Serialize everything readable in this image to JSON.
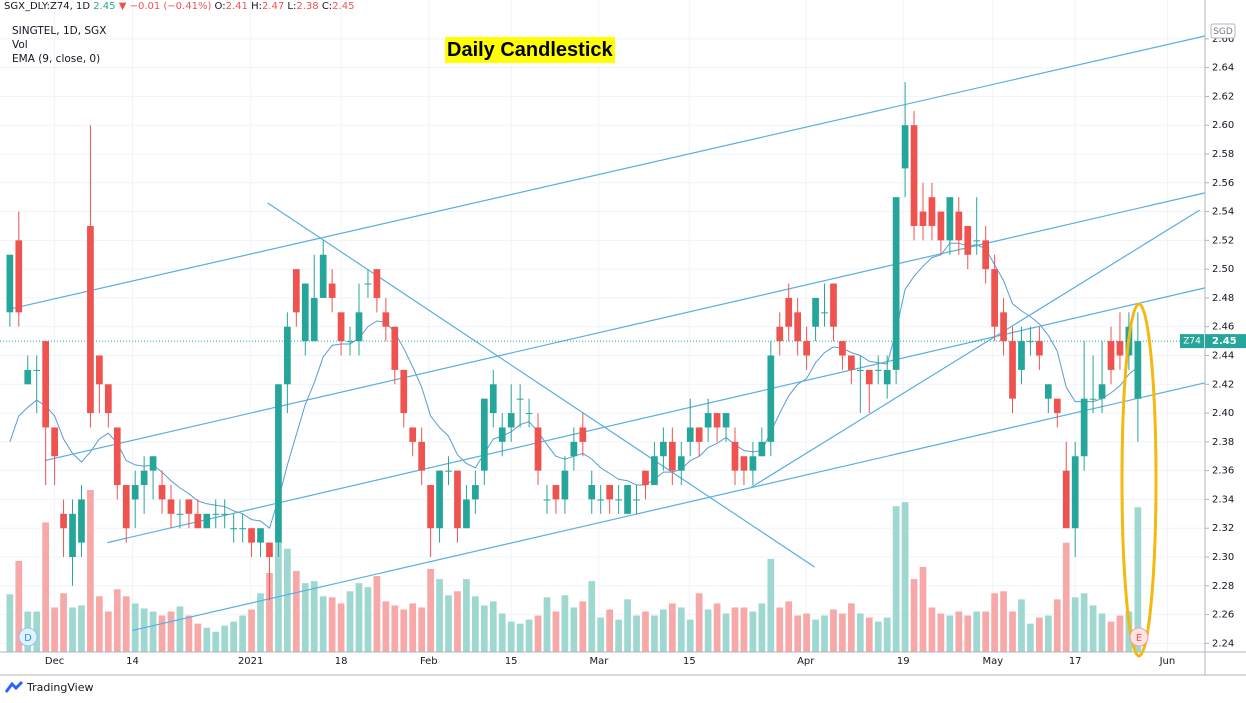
{
  "chart_data": {
    "type": "candlestick",
    "symbol": "SGX_DLY:Z74, 1D",
    "change": "−0.01 (−0.41%)",
    "ohlc_labels": [
      "O:",
      "H:",
      "L:",
      "C:"
    ],
    "legend": [
      "SINGTEL, 1D, SGX",
      "Vol",
      "EMA (9, close, 0)"
    ],
    "title": "Daily Candlestick",
    "currency": "SGD",
    "ticker": "Z74",
    "markers": [
      "D",
      "E"
    ],
    "brand": "TradingView",
    "up_color": "#26a69a",
    "down_color": "#ef5350",
    "up_volume_color": "#9fd8d0",
    "down_volume_color": "#f6a9a8",
    "ema_color": "#5b9bd5",
    "trendline_color": "#5aaee0",
    "grid": true,
    "open": [
      2.47,
      2.52,
      2.42,
      2.43,
      2.45,
      2.39,
      2.33,
      2.3,
      2.31,
      2.53,
      2.44,
      2.42,
      2.39,
      2.35,
      2.34,
      2.35,
      2.36,
      2.35,
      2.34,
      2.33,
      2.34,
      2.33,
      2.32,
      2.33,
      2.33,
      2.32,
      2.32,
      2.32,
      2.31,
      2.31,
      2.31,
      2.42,
      2.5,
      2.45,
      2.45,
      2.48,
      2.49,
      2.47,
      2.45,
      2.45,
      2.49,
      2.5,
      2.47,
      2.46,
      2.43,
      2.39,
      2.38,
      2.35,
      2.32,
      2.36,
      2.36,
      2.32,
      2.34,
      2.36,
      2.4,
      2.38,
      2.39,
      2.41,
      2.4,
      2.39,
      2.34,
      2.35,
      2.34,
      2.37,
      2.39,
      2.34,
      2.34,
      2.35,
      2.34,
      2.33,
      2.34,
      2.36,
      2.35,
      2.37,
      2.38,
      2.36,
      2.38,
      2.39,
      2.39,
      2.4,
      2.39,
      2.38,
      2.37,
      2.36,
      2.37,
      2.38,
      2.46,
      2.48,
      2.47,
      2.45,
      2.46,
      2.47,
      2.49,
      2.45,
      2.44,
      2.43,
      2.43,
      2.43,
      2.42,
      2.43,
      2.57,
      2.6,
      2.54,
      2.55,
      2.54,
      2.52,
      2.54,
      2.53,
      2.52,
      2.52,
      2.5,
      2.47,
      2.45,
      2.43,
      2.45,
      2.45,
      2.41,
      2.41,
      2.36,
      2.32,
      2.37,
      2.41,
      2.41,
      2.45,
      2.45,
      2.44,
      2.41
    ],
    "high": [
      2.51,
      2.54,
      2.44,
      2.44,
      2.45,
      2.39,
      2.34,
      2.34,
      2.35,
      2.6,
      2.44,
      2.42,
      2.39,
      2.35,
      2.36,
      2.37,
      2.37,
      2.36,
      2.35,
      2.34,
      2.34,
      2.34,
      2.33,
      2.34,
      2.34,
      2.33,
      2.33,
      2.32,
      2.32,
      2.31,
      2.42,
      2.47,
      2.5,
      2.49,
      2.51,
      2.52,
      2.5,
      2.47,
      2.46,
      2.49,
      2.5,
      2.5,
      2.48,
      2.46,
      2.43,
      2.39,
      2.39,
      2.35,
      2.36,
      2.37,
      2.36,
      2.35,
      2.36,
      2.41,
      2.43,
      2.4,
      2.42,
      2.42,
      2.41,
      2.4,
      2.35,
      2.35,
      2.37,
      2.39,
      2.4,
      2.36,
      2.35,
      2.35,
      2.35,
      2.35,
      2.35,
      2.36,
      2.38,
      2.39,
      2.39,
      2.38,
      2.41,
      2.39,
      2.41,
      2.4,
      2.4,
      2.39,
      2.37,
      2.38,
      2.39,
      2.45,
      2.47,
      2.49,
      2.48,
      2.46,
      2.48,
      2.49,
      2.49,
      2.45,
      2.44,
      2.44,
      2.43,
      2.44,
      2.44,
      2.55,
      2.63,
      2.61,
      2.56,
      2.56,
      2.54,
      2.55,
      2.55,
      2.53,
      2.55,
      2.53,
      2.51,
      2.48,
      2.46,
      2.46,
      2.46,
      2.46,
      2.42,
      2.41,
      2.38,
      2.38,
      2.45,
      2.44,
      2.45,
      2.46,
      2.47,
      2.47,
      2.47
    ],
    "low": [
      2.46,
      2.46,
      2.42,
      2.4,
      2.35,
      2.35,
      2.3,
      2.28,
      2.3,
      2.39,
      2.4,
      2.39,
      2.34,
      2.31,
      2.32,
      2.33,
      2.34,
      2.33,
      2.32,
      2.32,
      2.32,
      2.32,
      2.32,
      2.32,
      2.32,
      2.31,
      2.31,
      2.3,
      2.3,
      2.27,
      2.3,
      2.4,
      2.46,
      2.44,
      2.45,
      2.48,
      2.47,
      2.44,
      2.44,
      2.44,
      2.48,
      2.47,
      2.45,
      2.42,
      2.39,
      2.37,
      2.35,
      2.3,
      2.31,
      2.35,
      2.31,
      2.32,
      2.33,
      2.35,
      2.39,
      2.37,
      2.38,
      2.39,
      2.39,
      2.35,
      2.33,
      2.33,
      2.33,
      2.36,
      2.37,
      2.33,
      2.33,
      2.33,
      2.33,
      2.33,
      2.33,
      2.34,
      2.35,
      2.36,
      2.35,
      2.35,
      2.37,
      2.37,
      2.38,
      2.38,
      2.38,
      2.35,
      2.35,
      2.35,
      2.37,
      2.37,
      2.44,
      2.45,
      2.44,
      2.43,
      2.45,
      2.46,
      2.45,
      2.43,
      2.42,
      2.4,
      2.4,
      2.42,
      2.41,
      2.42,
      2.55,
      2.52,
      2.52,
      2.52,
      2.51,
      2.51,
      2.51,
      2.5,
      2.51,
      2.49,
      2.45,
      2.44,
      2.4,
      2.42,
      2.44,
      2.43,
      2.4,
      2.39,
      2.32,
      2.3,
      2.36,
      2.4,
      2.4,
      2.42,
      2.43,
      2.43,
      2.38
    ],
    "close": [
      2.51,
      2.47,
      2.43,
      2.43,
      2.39,
      2.37,
      2.32,
      2.33,
      2.34,
      2.4,
      2.42,
      2.4,
      2.35,
      2.32,
      2.35,
      2.36,
      2.37,
      2.34,
      2.33,
      2.33,
      2.33,
      2.32,
      2.33,
      2.33,
      2.33,
      2.32,
      2.32,
      2.31,
      2.32,
      2.3,
      2.42,
      2.46,
      2.47,
      2.49,
      2.48,
      2.51,
      2.48,
      2.45,
      2.45,
      2.47,
      2.49,
      2.48,
      2.46,
      2.43,
      2.4,
      2.38,
      2.36,
      2.32,
      2.36,
      2.36,
      2.32,
      2.34,
      2.35,
      2.41,
      2.42,
      2.39,
      2.4,
      2.41,
      2.4,
      2.36,
      2.34,
      2.34,
      2.36,
      2.38,
      2.38,
      2.35,
      2.34,
      2.34,
      2.34,
      2.35,
      2.34,
      2.35,
      2.37,
      2.38,
      2.36,
      2.37,
      2.39,
      2.38,
      2.4,
      2.39,
      2.4,
      2.36,
      2.36,
      2.37,
      2.38,
      2.44,
      2.45,
      2.46,
      2.45,
      2.44,
      2.48,
      2.47,
      2.46,
      2.44,
      2.43,
      2.43,
      2.42,
      2.43,
      2.43,
      2.55,
      2.6,
      2.53,
      2.53,
      2.53,
      2.52,
      2.55,
      2.52,
      2.51,
      2.52,
      2.5,
      2.46,
      2.45,
      2.41,
      2.45,
      2.45,
      2.44,
      2.42,
      2.4,
      2.32,
      2.37,
      2.41,
      2.41,
      2.42,
      2.43,
      2.44,
      2.46,
      2.45
    ],
    "volume": [
      57,
      90,
      40,
      40,
      128,
      44,
      58,
      44,
      46,
      160,
      55,
      40,
      62,
      55,
      48,
      43,
      40,
      36,
      40,
      45,
      36,
      28,
      24,
      20,
      26,
      30,
      36,
      42,
      58,
      78,
      108,
      102,
      80,
      68,
      70,
      55,
      54,
      48,
      60,
      68,
      64,
      75,
      50,
      46,
      42,
      48,
      44,
      82,
      72,
      56,
      60,
      72,
      55,
      46,
      50,
      38,
      30,
      28,
      32,
      36,
      54,
      40,
      56,
      44,
      50,
      70,
      34,
      42,
      32,
      52,
      36,
      40,
      36,
      42,
      48,
      44,
      32,
      58,
      42,
      48,
      38,
      44,
      44,
      40,
      48,
      92,
      44,
      50,
      36,
      38,
      32,
      36,
      42,
      38,
      48,
      38,
      34,
      30,
      34,
      144,
      148,
      72,
      84,
      44,
      38,
      36,
      40,
      36,
      40,
      40,
      58,
      60,
      40,
      52,
      28,
      34,
      36,
      52,
      108,
      54,
      58,
      46,
      38,
      30,
      36,
      40,
      143
    ],
    "ema": [
      2.38,
      2.398,
      2.404,
      2.409,
      2.405,
      2.398,
      2.382,
      2.372,
      2.366,
      2.373,
      2.382,
      2.386,
      2.379,
      2.367,
      2.364,
      2.363,
      2.364,
      2.359,
      2.353,
      2.348,
      2.344,
      2.339,
      2.337,
      2.336,
      2.335,
      2.332,
      2.33,
      2.326,
      2.325,
      2.32,
      2.34,
      2.364,
      2.385,
      2.406,
      2.421,
      2.439,
      2.447,
      2.448,
      2.448,
      2.452,
      2.46,
      2.464,
      2.463,
      2.456,
      2.445,
      2.432,
      2.418,
      2.398,
      2.39,
      2.384,
      2.371,
      2.365,
      2.362,
      2.372,
      2.382,
      2.384,
      2.387,
      2.392,
      2.394,
      2.387,
      2.378,
      2.37,
      2.368,
      2.37,
      2.372,
      2.368,
      2.362,
      2.358,
      2.354,
      2.353,
      2.35,
      2.35,
      2.354,
      2.359,
      2.359,
      2.361,
      2.367,
      2.37,
      2.376,
      2.379,
      2.383,
      2.378,
      2.374,
      2.373,
      2.374,
      2.387,
      2.4,
      2.412,
      2.42,
      2.424,
      2.435,
      2.442,
      2.446,
      2.445,
      2.442,
      2.44,
      2.436,
      2.435,
      2.434,
      2.457,
      2.486,
      2.495,
      2.502,
      2.508,
      2.51,
      2.518,
      2.518,
      2.516,
      2.517,
      2.514,
      2.503,
      2.492,
      2.476,
      2.471,
      2.467,
      2.462,
      2.454,
      2.443,
      2.418,
      2.408,
      2.408,
      2.408,
      2.41,
      2.414,
      2.419,
      2.427,
      2.432
    ],
    "trendlines": [
      {
        "x": [
          -0.2,
          133.5
        ],
        "y": [
          2.472,
          2.662
        ]
      },
      {
        "x": [
          3.9,
          133.5
        ],
        "y": [
          2.367,
          2.553
        ]
      },
      {
        "x": [
          10.9,
          133.5
        ],
        "y": [
          2.31,
          2.487
        ]
      },
      {
        "x": [
          13.7,
          133.5
        ],
        "y": [
          2.249,
          2.421
        ]
      },
      {
        "x": [
          28.8,
          89.9
        ],
        "y": [
          2.546,
          2.293
        ]
      },
      {
        "x": [
          82.7,
          132.9
        ],
        "y": [
          2.348,
          2.541
        ]
      }
    ],
    "xlim": [
      -1.1,
      133.5
    ],
    "xticks": [
      {
        "value": 5,
        "label": "Dec"
      },
      {
        "value": 13.7,
        "label": "14"
      },
      {
        "value": 26.9,
        "label": "2021"
      },
      {
        "value": 37,
        "label": "18"
      },
      {
        "value": 46.8,
        "label": "Feb"
      },
      {
        "value": 56,
        "label": "15"
      },
      {
        "value": 65.8,
        "label": "Mar"
      },
      {
        "value": 75.9,
        "label": "15"
      },
      {
        "value": 88.9,
        "label": "Apr"
      },
      {
        "value": 99.8,
        "label": "19"
      },
      {
        "value": 109.8,
        "label": "May"
      },
      {
        "value": 119,
        "label": "17"
      },
      {
        "value": 129.3,
        "label": "Jun"
      }
    ],
    "ylim": [
      2.234,
      2.687
    ],
    "yticks": [
      2.24,
      2.26,
      2.28,
      {
        "value": 2.3,
        "label": "2.30"
      },
      2.32,
      2.34,
      2.36,
      2.38,
      {
        "value": 2.4,
        "label": "2.40"
      },
      2.42,
      2.44,
      2.46,
      2.48,
      {
        "value": 2.5,
        "label": "2.50"
      },
      2.52,
      2.54,
      2.56,
      2.58,
      {
        "value": 2.6,
        "label": "2.60"
      },
      2.62,
      2.64,
      2.66
    ]
  }
}
